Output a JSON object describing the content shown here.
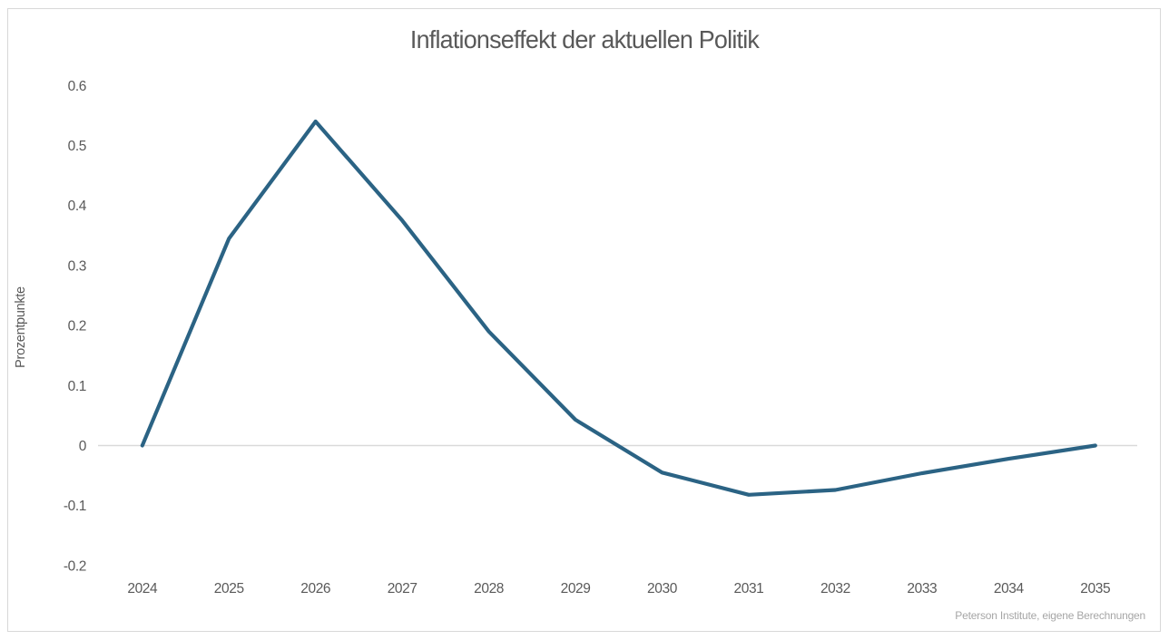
{
  "title": "Inflationseffekt der aktuellen Politik",
  "source_note": "Peterson Institute, eigene Berechnungen",
  "colors": {
    "line": "#2B6384",
    "gridline": "#D9D9D9",
    "axis_text": "#595959",
    "source_text": "#A6A6A6",
    "frame_border": "#D8D8D8",
    "background": "#FFFFFF"
  },
  "chart_data": {
    "type": "line",
    "title": "Inflationseffekt der aktuellen Politik",
    "xlabel": "",
    "ylabel": "Prozentpunkte",
    "categories": [
      "2024",
      "2025",
      "2026",
      "2027",
      "2028",
      "2029",
      "2030",
      "2031",
      "2032",
      "2033",
      "2034",
      "2035"
    ],
    "values": [
      0.0,
      0.345,
      0.54,
      0.375,
      0.19,
      0.043,
      -0.045,
      -0.082,
      -0.074,
      -0.046,
      -0.022,
      0.0
    ],
    "ylim": [
      -0.2,
      0.6
    ],
    "y_ticks": [
      "0.6",
      "0.5",
      "0.4",
      "0.3",
      "0.2",
      "0.1",
      "0",
      "-0.1",
      "-0.2"
    ],
    "grid": "horizontal zero line only",
    "legend": "none",
    "series_name": "Inflationseffekt",
    "source": "Peterson Institute, eigene Berechnungen"
  }
}
